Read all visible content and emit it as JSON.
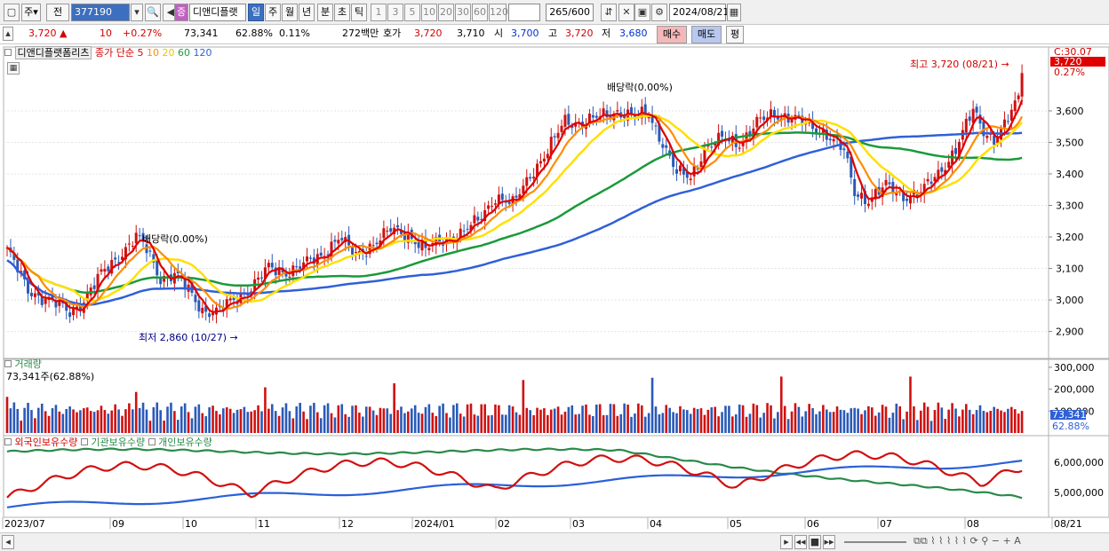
{
  "toolbar": {
    "type_label": "주",
    "search_label": "전",
    "code": "377190",
    "stock_badge": "증",
    "stock_name": "디앤디플랫",
    "periods": [
      "일",
      "주",
      "월",
      "년",
      "분",
      "초",
      "틱"
    ],
    "selected_period": "일",
    "intervals": [
      "1",
      "3",
      "5",
      "10",
      "20",
      "30",
      "60",
      "120"
    ],
    "count": "265",
    "count_total": "/600",
    "date": "2024/08/21"
  },
  "quote": {
    "price": "3,720",
    "change_arrow": "▲",
    "change": "10",
    "change_pct": "+0.27%",
    "volume": "73,341",
    "volume_ratio": "62.88%",
    "turnover_pct": "0.11%",
    "amount": "272백만",
    "bid_ask_label": "호가",
    "ask": "3,720",
    "bid": "3,710",
    "open_label": "시",
    "open": "3,700",
    "high_label": "고",
    "high": "3,720",
    "low_label": "저",
    "low": "3,680",
    "buy_label": "매수",
    "sell_label": "매도",
    "eval_label": "평"
  },
  "colors": {
    "ma5": "#e00000",
    "ma10": "#ff8c00",
    "ma20": "#ffe000",
    "ma60": "#1a9a3a",
    "ma120": "#3060d8",
    "up": "#d01010",
    "down": "#2a5ab8",
    "foreign": "#d01010",
    "inst": "#2a8a4a",
    "individual": "#2a60d8"
  },
  "chart_data": [
    {
      "type": "candlestick",
      "title": "디앤디플랫폼리츠",
      "legend": {
        "price_label": "종가",
        "ma_label": "단순",
        "periods": [
          "5",
          "10",
          "20",
          "60",
          "120"
        ]
      },
      "ylim": [
        2820,
        3780
      ],
      "y_ticks": [
        2900,
        3000,
        3100,
        3200,
        3300,
        3400,
        3500,
        3600
      ],
      "y_tick_labels": [
        "2,900",
        "3,000",
        "3,100",
        "3,200",
        "3,300",
        "3,400",
        "3,500",
        "3,600"
      ],
      "top_right_label": "C:30.07",
      "price_tag": "3,720",
      "price_tag_pct": "0.27%",
      "annotations": {
        "high": "최고 3,720 (08/21)",
        "low": "최저 2,860 (10/27)",
        "dividend_1": "배당락(0.00%)",
        "dividend_2": "배당락(0.00%)"
      },
      "x_labels": [
        "2023/07",
        "09",
        "10",
        "11",
        "12",
        "2024/01",
        "02",
        "03",
        "04",
        "05",
        "06",
        "07",
        "08",
        "08/21"
      ],
      "close_anchors": [
        [
          0,
          3160
        ],
        [
          6,
          3030
        ],
        [
          12,
          3000
        ],
        [
          18,
          2960
        ],
        [
          22,
          3000
        ],
        [
          27,
          3080
        ],
        [
          32,
          3140
        ],
        [
          37,
          3200
        ],
        [
          40,
          3160
        ],
        [
          44,
          3070
        ],
        [
          48,
          3080
        ],
        [
          52,
          3030
        ],
        [
          56,
          2970
        ],
        [
          60,
          2960
        ],
        [
          65,
          3000
        ],
        [
          70,
          3040
        ],
        [
          75,
          3100
        ],
        [
          80,
          3090
        ],
        [
          85,
          3110
        ],
        [
          90,
          3140
        ],
        [
          95,
          3200
        ],
        [
          100,
          3140
        ],
        [
          105,
          3180
        ],
        [
          110,
          3220
        ],
        [
          115,
          3210
        ],
        [
          120,
          3160
        ],
        [
          125,
          3190
        ],
        [
          130,
          3210
        ],
        [
          135,
          3250
        ],
        [
          140,
          3330
        ],
        [
          145,
          3300
        ],
        [
          150,
          3400
        ],
        [
          155,
          3470
        ],
        [
          160,
          3570
        ],
        [
          165,
          3560
        ],
        [
          170,
          3580
        ],
        [
          175,
          3600
        ],
        [
          180,
          3580
        ],
        [
          184,
          3590
        ],
        [
          188,
          3500
        ],
        [
          192,
          3400
        ],
        [
          196,
          3390
        ],
        [
          200,
          3480
        ],
        [
          205,
          3510
        ],
        [
          210,
          3500
        ],
        [
          215,
          3560
        ],
        [
          220,
          3590
        ],
        [
          225,
          3580
        ],
        [
          230,
          3550
        ],
        [
          235,
          3530
        ],
        [
          240,
          3470
        ],
        [
          243,
          3340
        ],
        [
          247,
          3320
        ],
        [
          252,
          3360
        ],
        [
          257,
          3330
        ],
        [
          262,
          3340
        ],
        [
          267,
          3400
        ],
        [
          272,
          3480
        ],
        [
          277,
          3600
        ],
        [
          280,
          3540
        ],
        [
          283,
          3510
        ],
        [
          286,
          3550
        ],
        [
          290,
          3640
        ],
        [
          291,
          3720
        ]
      ],
      "volume": {
        "title": "거래량",
        "current": "73,341주(62.88%)",
        "ylim": [
          0,
          320000
        ],
        "y_tick_labels": [
          "300,000",
          "200,000",
          "100,000"
        ],
        "tag_value": "73,341",
        "tag_pct": "62.88%"
      },
      "holdings": {
        "series": [
          "외국인보유수량",
          "기관보유수량",
          "개인보유수량"
        ],
        "y_tick_labels": [
          "6,000,000",
          "5,000,000"
        ]
      }
    }
  ]
}
